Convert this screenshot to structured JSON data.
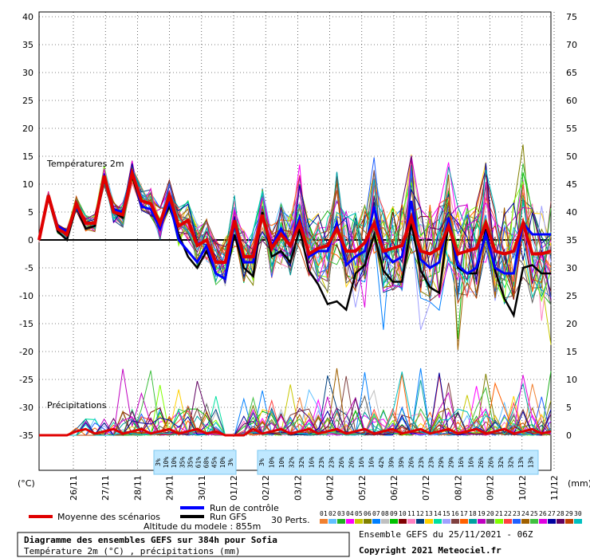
{
  "chart_data": {
    "type": "line",
    "title": "Diagramme des ensembles GEFS sur 384h pour Sofia",
    "subtitle": "Température 2m (°C) , précipitations (mm)",
    "altitude": "Altitude du modele : 855m",
    "run_info": "Ensemble GEFS du 25/11/2021 - 06Z",
    "copyright": "Copyright 2021 Meteociel.fr",
    "section_temp": "Températures 2m",
    "section_precip": "Précipitations",
    "left_unit": "(°C)",
    "right_unit": "(mm)",
    "left_ticks": [
      40,
      35,
      30,
      25,
      20,
      15,
      10,
      5,
      0,
      -5,
      -10,
      -15,
      -20,
      -25,
      -30,
      -35
    ],
    "right_ticks": [
      75,
      70,
      65,
      60,
      55,
      50,
      45,
      40,
      35,
      30,
      25,
      20,
      15,
      10,
      5,
      0
    ],
    "ylim_temp": [
      -35,
      40
    ],
    "precip_range_mm": [
      0,
      75
    ],
    "date_labels": [
      "26/11",
      "27/11",
      "28/11",
      "29/11",
      "30/11",
      "01/12",
      "02/12",
      "03/12",
      "04/12",
      "05/12",
      "06/12",
      "07/12",
      "08/12",
      "09/12",
      "10/12",
      "11/12"
    ],
    "snow_label_first": "3%",
    "snow_percents_a": [
      "3%",
      "10%",
      "10%",
      "35%",
      "35%",
      "61%",
      "68%",
      "45%",
      "10%",
      "3%"
    ],
    "snow_percents_b": [
      "3%",
      "10%",
      "10%",
      "32%",
      "32%",
      "16%",
      "23%",
      "23%",
      "26%",
      "26%",
      "16%",
      "16%",
      "42%",
      "39%",
      "39%",
      "26%",
      "23%",
      "23%",
      "29%",
      "29%",
      "16%",
      "16%",
      "26%",
      "26%",
      "32%",
      "32%",
      "13%",
      "13%"
    ],
    "legend": {
      "mean": {
        "label": "Moyenne des scénarios",
        "color": "#e00000"
      },
      "control": {
        "label": "Run de contrôle",
        "color": "#0000ff"
      },
      "gfs": {
        "label": "Run GFS",
        "color": "#000000"
      },
      "perts_label": "30 Perts.",
      "pert_numbers": [
        "01",
        "02",
        "03",
        "04",
        "05",
        "06",
        "07",
        "08",
        "09",
        "10",
        "11",
        "12",
        "13",
        "14",
        "15",
        "16",
        "17",
        "18",
        "19",
        "20",
        "21",
        "22",
        "23",
        "24",
        "25",
        "26",
        "27",
        "28",
        "29",
        "30"
      ],
      "pert_colors": [
        "#f08030",
        "#60c0ff",
        "#20b020",
        "#ff00ff",
        "#c8c800",
        "#808000",
        "#0080ff",
        "#c0c0c0",
        "#00c000",
        "#800000",
        "#ff80c0",
        "#004080",
        "#ffd000",
        "#00e0a0",
        "#a0a0ff",
        "#804040",
        "#ff6000",
        "#00a0a0",
        "#c000c0",
        "#606060",
        "#80ff00",
        "#ff4040",
        "#2060ff",
        "#a06000",
        "#40c040",
        "#e000e0",
        "#0000a0",
        "#600060",
        "#c04000",
        "#00c0c0"
      ]
    },
    "series": [
      {
        "name": "Moyenne des scénarios",
        "color": "#e00000",
        "values": [
          0,
          8,
          2,
          1,
          6.5,
          3,
          3,
          11.5,
          5,
          4.5,
          12,
          7,
          6.5,
          3,
          8,
          2.5,
          3.5,
          -1,
          0,
          -4,
          -4,
          3.5,
          -3,
          -3,
          4.5,
          -1.5,
          1,
          -1,
          3,
          -2.5,
          -1.5,
          -1,
          2,
          -2,
          -2,
          -0.5,
          3,
          -2,
          -1.5,
          -1,
          4,
          -2,
          -2.5,
          -1.5,
          2.5,
          -2.5,
          -2,
          -1.5,
          3,
          -2,
          -2.5,
          -2,
          3,
          -2.5,
          -2.5,
          -2
        ]
      },
      {
        "name": "Run de contrôle",
        "color": "#0000ff",
        "values": [
          0,
          8,
          2.5,
          1.5,
          6,
          3,
          3,
          11.5,
          5.5,
          5,
          12.5,
          6,
          5.5,
          2,
          7,
          0,
          -2,
          -4,
          -1,
          -6,
          -7,
          3,
          -4,
          -4,
          4.5,
          -1,
          2,
          -1,
          4,
          -3,
          -2,
          -2,
          3,
          -4.5,
          -3,
          -2,
          6,
          -2,
          -4,
          -3,
          7,
          -3.5,
          -5,
          -4,
          4,
          -4.5,
          -6,
          -5,
          1,
          -5,
          -6,
          -6,
          3,
          1,
          1,
          1
        ]
      },
      {
        "name": "Run GFS",
        "color": "#000000",
        "values": [
          0,
          7.5,
          1.5,
          0,
          6,
          2,
          2.5,
          11,
          5,
          4,
          11.5,
          6,
          5.5,
          2.5,
          6,
          1,
          -3,
          -5,
          -2,
          -6,
          -7,
          1,
          -5,
          -6.5,
          5,
          -3,
          -2,
          -4,
          2,
          -5.5,
          -8,
          -11.5,
          -11,
          -12.5,
          -6,
          -4.5,
          1,
          -5.5,
          -7.5,
          -7.5,
          3,
          -5.5,
          -8.5,
          -9.5,
          3,
          -5,
          -6,
          -6,
          2,
          -5.5,
          -10.5,
          -13.5,
          -5,
          -4.5,
          -6,
          -6
        ]
      }
    ]
  }
}
